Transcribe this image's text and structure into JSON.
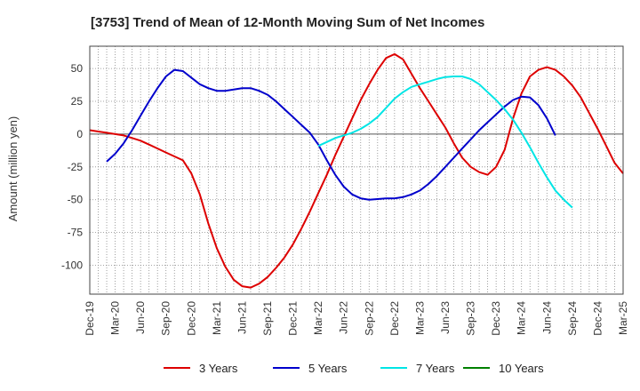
{
  "chart_data": {
    "type": "line",
    "title": "[3753]  Trend of Mean of 12-Month Moving Sum of Net Incomes",
    "ylabel": "Amount (million yen)",
    "xlabel": "",
    "ylim": [
      -122,
      67
    ],
    "yticks": [
      50,
      25,
      0,
      -25,
      -50,
      -75,
      -100
    ],
    "xticks": [
      "Dec-19",
      "Mar-20",
      "Jun-20",
      "Sep-20",
      "Dec-20",
      "Mar-21",
      "Jun-21",
      "Sep-21",
      "Dec-21",
      "Mar-22",
      "Jun-22",
      "Sep-22",
      "Dec-22",
      "Mar-23",
      "Jun-23",
      "Sep-23",
      "Dec-23",
      "Mar-24",
      "Jun-24",
      "Sep-24",
      "Dec-24",
      "Mar-25"
    ],
    "grid": true,
    "legend_position": "bottom",
    "series": [
      {
        "name": "3 Years",
        "color": "#dd0000",
        "start_index": 0,
        "values": [
          3,
          2,
          1,
          0,
          -1,
          -3,
          -5,
          -8,
          -11,
          -14,
          -17,
          -20,
          -30,
          -46,
          -68,
          -87,
          -101,
          -111,
          -116,
          -117,
          -114,
          -109,
          -102,
          -94,
          -84,
          -72,
          -59,
          -45,
          -31,
          -16,
          -2,
          12,
          26,
          38,
          49,
          58,
          61,
          57,
          46,
          35,
          25,
          15,
          5,
          -7,
          -18,
          -25,
          -29,
          -31,
          -25,
          -12,
          12,
          31,
          44,
          49,
          51,
          49,
          44,
          37,
          28,
          16,
          4,
          -9,
          -22,
          -30
        ]
      },
      {
        "name": "5 Years",
        "color": "#0000cc",
        "start_index": 2,
        "values": [
          -21,
          -15,
          -7,
          3,
          14,
          25,
          35,
          44,
          49,
          48,
          43,
          38,
          35,
          33,
          33,
          34,
          35,
          35,
          33,
          30,
          25,
          19,
          13,
          7,
          1,
          -8,
          -20,
          -31,
          -40,
          -46,
          -49,
          -50,
          -49.5,
          -49,
          -49,
          -48,
          -46,
          -43,
          -38,
          -32,
          -25,
          -18,
          -11,
          -4,
          3,
          9,
          15,
          21,
          26,
          28.5,
          28,
          22,
          12,
          -1
        ]
      },
      {
        "name": "7 Years",
        "color": "#00e5e5",
        "start_index": 27,
        "values": [
          -9,
          -6,
          -3,
          -1,
          1,
          4,
          8,
          13,
          20,
          27,
          32,
          36,
          38,
          40,
          42,
          43.5,
          44,
          44,
          42,
          38,
          32,
          26,
          19,
          11,
          1,
          -10,
          -22,
          -33,
          -43,
          -50,
          -56
        ]
      },
      {
        "name": "10 Years",
        "color": "#008000",
        "start_index": 0,
        "values": []
      }
    ]
  }
}
